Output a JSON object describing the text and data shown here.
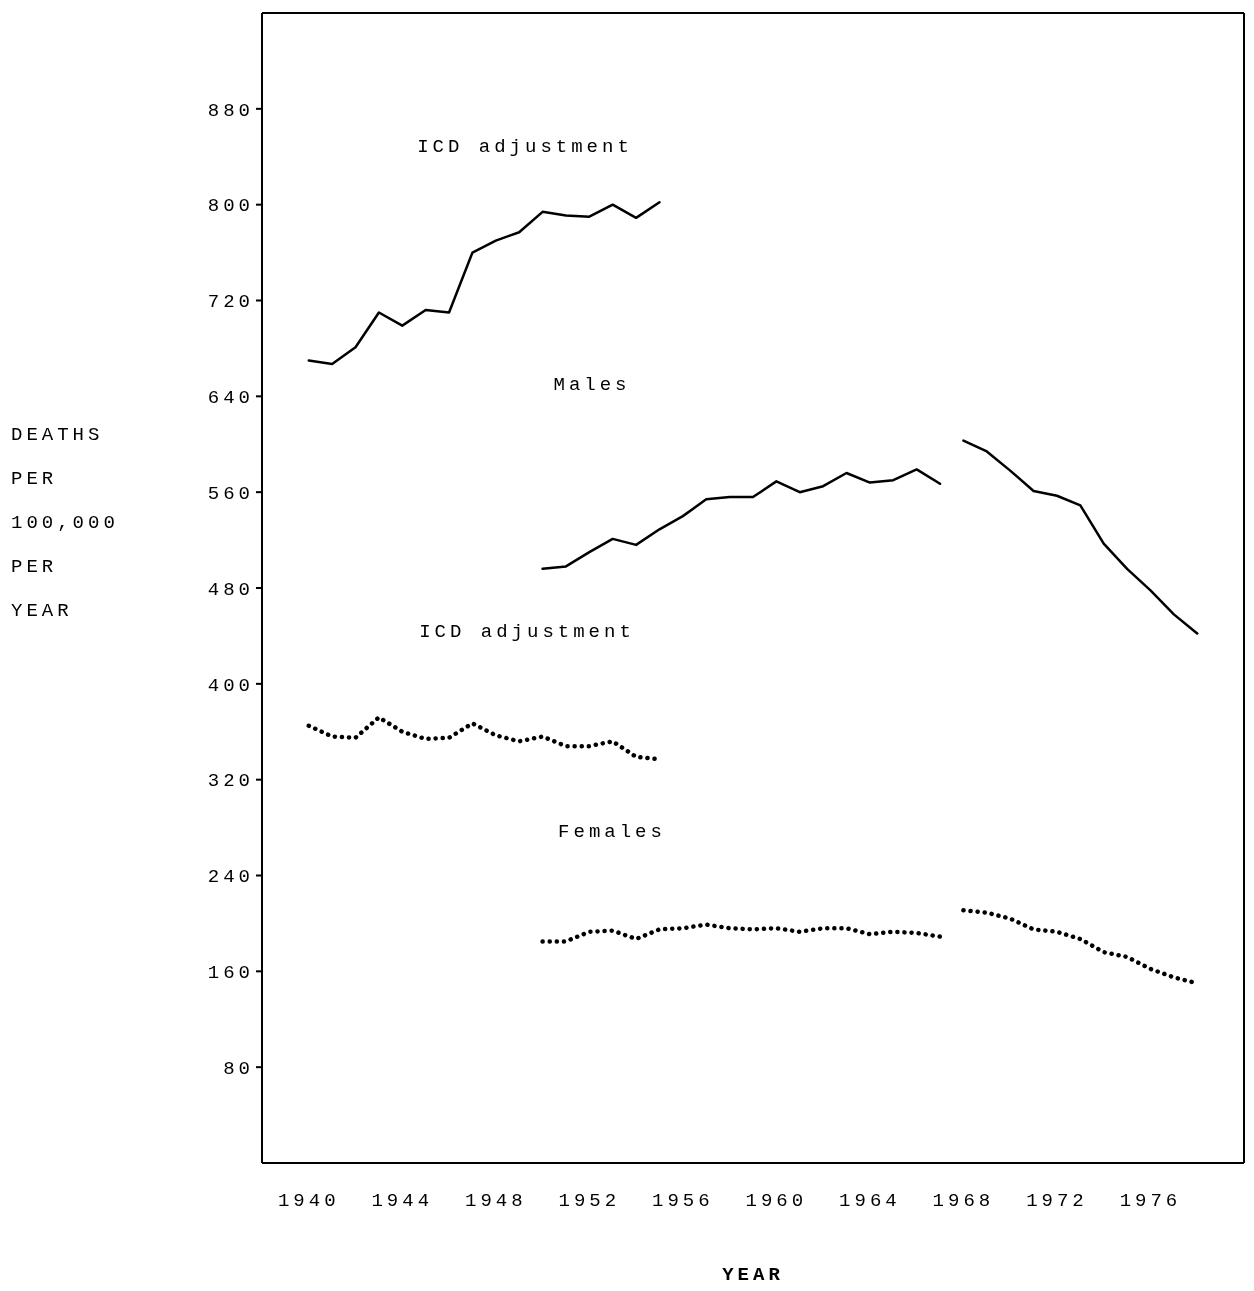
{
  "chart_data": {
    "type": "line",
    "xlabel": "YEAR",
    "ylabel": "DEATHS PER 100,000 PER YEAR",
    "xlim": [
      1938,
      1980
    ],
    "xticks": [
      1940,
      1944,
      1948,
      1952,
      1956,
      1960,
      1964,
      1968,
      1972,
      1976
    ],
    "ylim": [
      0,
      960
    ],
    "yticks": [
      80,
      160,
      240,
      320,
      400,
      480,
      560,
      640,
      720,
      800,
      880
    ],
    "legend": false,
    "marker": "none",
    "series": [
      {
        "color": "#000000",
        "line_style": "solid",
        "x": [
          1940,
          1941,
          1942,
          1943,
          1944,
          1945,
          1946,
          1947,
          1948,
          1949,
          1950,
          1951,
          1952,
          1953,
          1954,
          1955
        ],
        "values": [
          670,
          667,
          681,
          710,
          699,
          712,
          710,
          760,
          770,
          777,
          794,
          791,
          790,
          800,
          789,
          802
        ]
      },
      {
        "color": "#000000",
        "line_style": "solid",
        "x": [
          1950,
          1951,
          1952,
          1953,
          1954,
          1955,
          1956,
          1957,
          1958,
          1959,
          1960,
          1961,
          1962,
          1963,
          1964,
          1965,
          1966,
          1967
        ],
        "values": [
          496,
          498,
          510,
          521,
          516,
          529,
          540,
          554,
          556,
          556,
          569,
          560,
          565,
          576,
          568,
          570,
          579,
          567
        ]
      },
      {
        "color": "#000000",
        "line_style": "solid",
        "x": [
          1968,
          1969,
          1970,
          1971,
          1972,
          1973,
          1974,
          1975,
          1976,
          1977,
          1978
        ],
        "values": [
          603,
          594,
          578,
          561,
          557,
          549,
          517,
          496,
          478,
          458,
          442
        ]
      },
      {
        "color": "#000000",
        "line_style": "dotted",
        "x": [
          1940,
          1941,
          1942,
          1943,
          1944,
          1945,
          1946,
          1947,
          1948,
          1949,
          1950,
          1951,
          1952,
          1953,
          1954,
          1955
        ],
        "values": [
          365,
          356,
          355,
          372,
          360,
          354,
          355,
          367,
          357,
          352,
          356,
          348,
          348,
          352,
          339,
          337
        ]
      },
      {
        "color": "#000000",
        "line_style": "dotted",
        "x": [
          1950,
          1951,
          1952,
          1953,
          1954,
          1955,
          1956,
          1957,
          1958,
          1959,
          1960,
          1961,
          1962,
          1963,
          1964,
          1965,
          1966,
          1967
        ],
        "values": [
          185,
          185,
          193,
          194,
          187,
          195,
          196,
          199,
          196,
          195,
          196,
          193,
          196,
          196,
          191,
          193,
          192,
          189
        ]
      },
      {
        "color": "#000000",
        "line_style": "dotted",
        "x": [
          1968,
          1969,
          1970,
          1971,
          1972,
          1973,
          1974,
          1975,
          1976,
          1977,
          1978
        ],
        "values": [
          211,
          209,
          204,
          195,
          193,
          187,
          176,
          172,
          162,
          155,
          150
        ]
      }
    ],
    "annotations": [
      "ICD adjustment",
      "Males",
      "ICD adjustment",
      "Females"
    ]
  }
}
